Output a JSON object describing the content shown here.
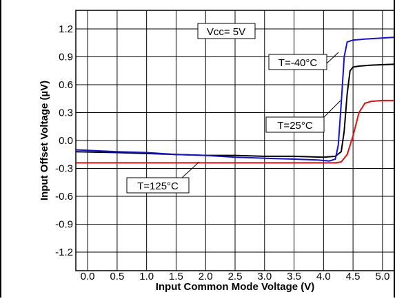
{
  "chart_data": {
    "type": "line",
    "title": "",
    "xlabel": "Input Common Mode Voltage (V)",
    "ylabel": "Input Offset Voltage (µV)",
    "xlim": [
      -0.2,
      5.2
    ],
    "ylim": [
      -1.4,
      1.4
    ],
    "x_ticks": [
      "0.0",
      "0.5",
      "1.0",
      "1.5",
      "2.0",
      "2.5",
      "3.0",
      "3.5",
      "4.0",
      "4.5",
      "5.0"
    ],
    "y_ticks": [
      "1.2",
      "0.9",
      "0.6",
      "0.3",
      "0.0",
      "-0.3",
      "-0.6",
      "-0.9",
      "-1.2"
    ],
    "grid": true,
    "colors": {
      "T_m40": "#1010e0",
      "T_25": "#000000",
      "T_125": "#e01010"
    },
    "series": [
      {
        "name": "T=-40°C",
        "x": [
          -0.2,
          0.5,
          1.0,
          1.5,
          2.0,
          2.5,
          3.0,
          3.5,
          3.9,
          4.1,
          4.2,
          4.25,
          4.3,
          4.35,
          4.4,
          4.5,
          4.7,
          5.2
        ],
        "y": [
          -0.1,
          -0.12,
          -0.13,
          -0.15,
          -0.16,
          -0.18,
          -0.19,
          -0.2,
          -0.21,
          -0.22,
          -0.2,
          -0.05,
          0.4,
          0.9,
          1.06,
          1.08,
          1.09,
          1.11
        ]
      },
      {
        "name": "T=25°C",
        "x": [
          -0.2,
          0.5,
          1.0,
          1.5,
          2.0,
          2.5,
          3.0,
          3.5,
          4.0,
          4.2,
          4.3,
          4.35,
          4.4,
          4.45,
          4.5,
          4.6,
          4.8,
          5.2
        ],
        "y": [
          -0.12,
          -0.13,
          -0.14,
          -0.15,
          -0.16,
          -0.16,
          -0.17,
          -0.17,
          -0.18,
          -0.17,
          -0.12,
          0.1,
          0.5,
          0.75,
          0.79,
          0.8,
          0.81,
          0.82
        ]
      },
      {
        "name": "T=125°C",
        "x": [
          -0.2,
          0.5,
          1.0,
          1.5,
          2.0,
          2.5,
          3.0,
          3.5,
          4.0,
          4.2,
          4.3,
          4.4,
          4.5,
          4.6,
          4.7,
          4.8,
          5.0,
          5.2
        ],
        "y": [
          -0.24,
          -0.24,
          -0.24,
          -0.24,
          -0.24,
          -0.24,
          -0.24,
          -0.24,
          -0.24,
          -0.24,
          -0.23,
          -0.15,
          0.05,
          0.3,
          0.4,
          0.42,
          0.43,
          0.43
        ]
      }
    ],
    "annotations": {
      "vcc": "Vcc= 5V",
      "t_m40": "T=-40°C",
      "t_25": "T=25°C",
      "t_125": "T=125°C"
    }
  }
}
